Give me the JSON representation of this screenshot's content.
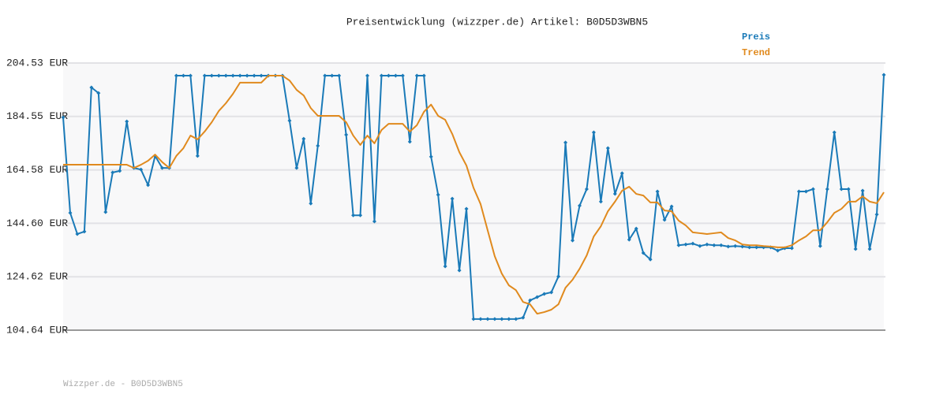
{
  "chart_data": {
    "type": "line",
    "title": "Preisentwicklung (wizzper.de) Artikel: B0D5D3WBN5",
    "footer": "Wizzper.de - B0D5D3WBN5",
    "legend": "top-right",
    "grid": true,
    "ylim": [
      104.64,
      204.53
    ],
    "yticks": [
      {
        "value": 104.64,
        "label": "104.64 EUR"
      },
      {
        "value": 124.62,
        "label": "124.62 EUR"
      },
      {
        "value": 144.6,
        "label": "144.60 EUR"
      },
      {
        "value": 164.58,
        "label": "164.58 EUR"
      },
      {
        "value": 184.55,
        "label": "184.55 EUR"
      },
      {
        "value": 204.53,
        "label": "204.53 EUR"
      }
    ],
    "series": [
      {
        "name": "Preis",
        "color": "#1a7ab8",
        "markers": true,
        "values": [
          184.2,
          148.5,
          140.6,
          141.5,
          195.4,
          193.3,
          148.8,
          163.6,
          164.2,
          182.7,
          165.3,
          164.7,
          158.9,
          169.8,
          165.3,
          165.3,
          199.8,
          199.8,
          199.8,
          169.8,
          199.8,
          199.8,
          199.8,
          199.8,
          199.8,
          199.8,
          199.8,
          199.8,
          199.8,
          199.8,
          199.8,
          199.8,
          183.0,
          165.3,
          176.2,
          152.0,
          173.6,
          199.8,
          199.8,
          199.8,
          177.7,
          147.6,
          147.6,
          199.8,
          145.3,
          199.8,
          199.8,
          199.8,
          199.8,
          175.1,
          199.8,
          199.8,
          169.5,
          155.3,
          128.5,
          153.8,
          127.0,
          150.0,
          108.8,
          108.8,
          108.8,
          108.8,
          108.8,
          108.8,
          108.8,
          109.3,
          115.8,
          117.0,
          118.2,
          118.8,
          124.7,
          174.8,
          138.2,
          151.2,
          157.4,
          178.6,
          152.7,
          172.7,
          155.6,
          163.3,
          138.5,
          142.6,
          133.5,
          131.1,
          156.5,
          145.9,
          150.9,
          136.4,
          136.7,
          137.0,
          136.1,
          136.7,
          136.4,
          136.4,
          135.9,
          136.1,
          135.9,
          135.6,
          135.6,
          135.6,
          135.6,
          134.4,
          135.3,
          135.3,
          156.5,
          156.5,
          157.4,
          136.1,
          157.4,
          178.6,
          157.4,
          157.4,
          135.0,
          156.8,
          135.0,
          147.9,
          200.1
        ]
      },
      {
        "name": "Trend",
        "color": "#e08a1e",
        "markers": false,
        "values": [
          166.5,
          166.5,
          166.5,
          166.5,
          166.5,
          166.5,
          166.5,
          166.5,
          166.5,
          166.5,
          165.3,
          166.5,
          168.0,
          170.3,
          167.5,
          165.3,
          169.8,
          172.7,
          177.4,
          176.0,
          178.9,
          182.4,
          186.6,
          189.5,
          193.0,
          197.2,
          197.2,
          197.2,
          197.2,
          199.8,
          199.8,
          199.8,
          198.0,
          194.5,
          192.4,
          187.7,
          184.8,
          184.8,
          184.8,
          184.8,
          182.4,
          177.4,
          173.9,
          177.4,
          174.5,
          179.5,
          181.8,
          181.8,
          181.8,
          178.9,
          181.3,
          186.3,
          189.0,
          184.8,
          183.3,
          178.0,
          171.2,
          166.2,
          157.9,
          151.8,
          142.0,
          132.3,
          125.8,
          121.4,
          119.6,
          115.2,
          114.3,
          110.8,
          111.4,
          112.3,
          114.3,
          120.5,
          123.5,
          127.6,
          132.6,
          139.7,
          143.5,
          149.1,
          152.7,
          156.8,
          158.3,
          155.6,
          155.0,
          152.4,
          152.4,
          149.4,
          149.1,
          145.6,
          143.8,
          141.2,
          140.9,
          140.6,
          140.9,
          141.2,
          139.1,
          138.2,
          136.7,
          136.4,
          136.4,
          136.1,
          135.9,
          135.6,
          135.6,
          136.4,
          138.2,
          139.7,
          142.0,
          142.0,
          145.0,
          148.5,
          150.0,
          152.7,
          152.7,
          154.7,
          152.7,
          152.1,
          156.2
        ]
      }
    ]
  }
}
